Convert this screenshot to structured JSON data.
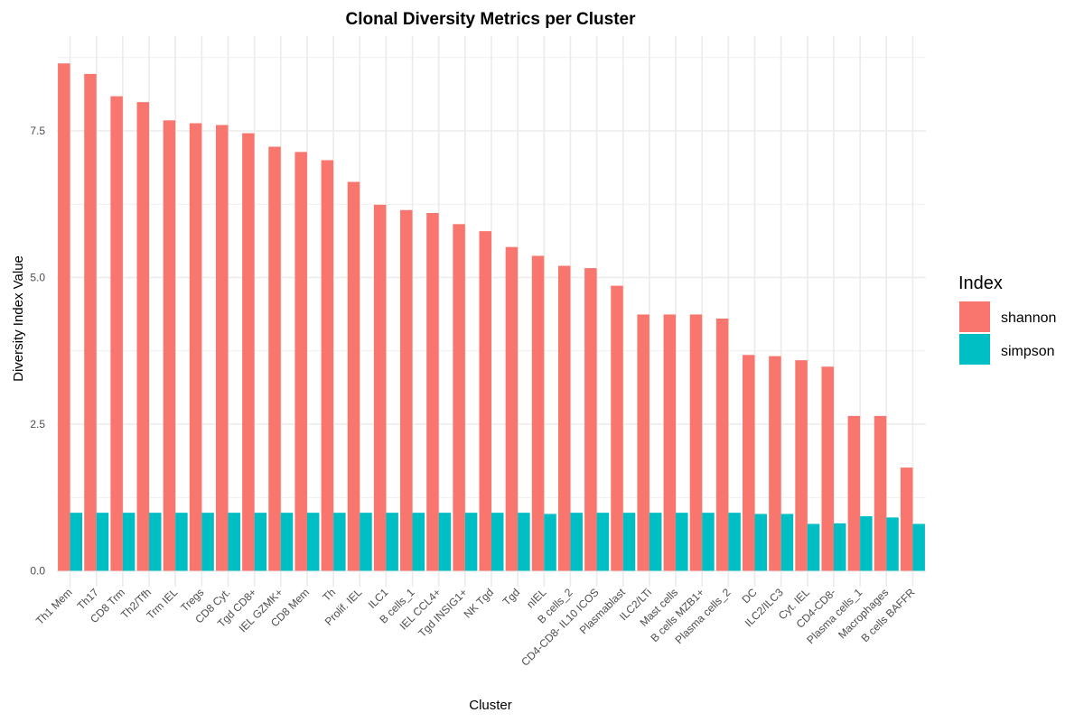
{
  "chart_data": {
    "type": "bar",
    "title": "Clonal Diversity Metrics per Cluster",
    "xlabel": "Cluster",
    "ylabel": "Diversity Index Value",
    "ylim": [
      0,
      8.85
    ],
    "yticks": [
      0.0,
      2.5,
      5.0,
      7.5
    ],
    "ytick_labels": [
      "0.0",
      "2.5",
      "5.0",
      "7.5"
    ],
    "grid": true,
    "legend": {
      "title": "Index",
      "position": "right"
    },
    "categories": [
      "Th1 Mem",
      "Th17",
      "CD8 Trm",
      "Th2/Tfh",
      "Trm IEL",
      "Tregs",
      "CD8 Cyt.",
      "Tgd CD8+",
      "IEL GZMK+",
      "CD8 Mem",
      "Th",
      "Prolif. IEL",
      "ILC1",
      "B cells_1",
      "IEL CCL4+",
      "Tgd INSIG1+",
      "NK Tgd",
      "Tgd",
      "nIEL",
      "B cells_2",
      "CD4-CD8- IL10 ICOS",
      "Plasmablast",
      "ILC2/LTi",
      "Mast cells",
      "B cells MZB1+",
      "Plasma cells_2",
      "DC",
      "ILC2/ILC3",
      "Cyt. IEL",
      "CD4-CD8-",
      "Plasma cells_1",
      "Macrophages",
      "B cells BAFFR"
    ],
    "series": [
      {
        "name": "shannon",
        "color": "#F8766D",
        "values": [
          8.65,
          8.47,
          8.09,
          7.99,
          7.68,
          7.63,
          7.6,
          7.46,
          7.23,
          7.14,
          7.0,
          6.63,
          6.24,
          6.15,
          6.1,
          5.91,
          5.79,
          5.52,
          5.37,
          5.2,
          5.16,
          4.86,
          4.37,
          4.37,
          4.37,
          4.3,
          3.68,
          3.66,
          3.59,
          3.48,
          2.64,
          2.64,
          1.76
        ]
      },
      {
        "name": "simpson",
        "color": "#00BFC4",
        "values": [
          0.99,
          0.99,
          0.99,
          0.99,
          0.99,
          0.99,
          0.99,
          0.99,
          0.99,
          0.99,
          0.99,
          0.99,
          0.99,
          0.99,
          0.99,
          0.99,
          0.99,
          0.99,
          0.97,
          0.99,
          0.99,
          0.99,
          0.99,
          0.99,
          0.99,
          0.99,
          0.97,
          0.97,
          0.8,
          0.81,
          0.93,
          0.91,
          0.8
        ]
      }
    ]
  }
}
